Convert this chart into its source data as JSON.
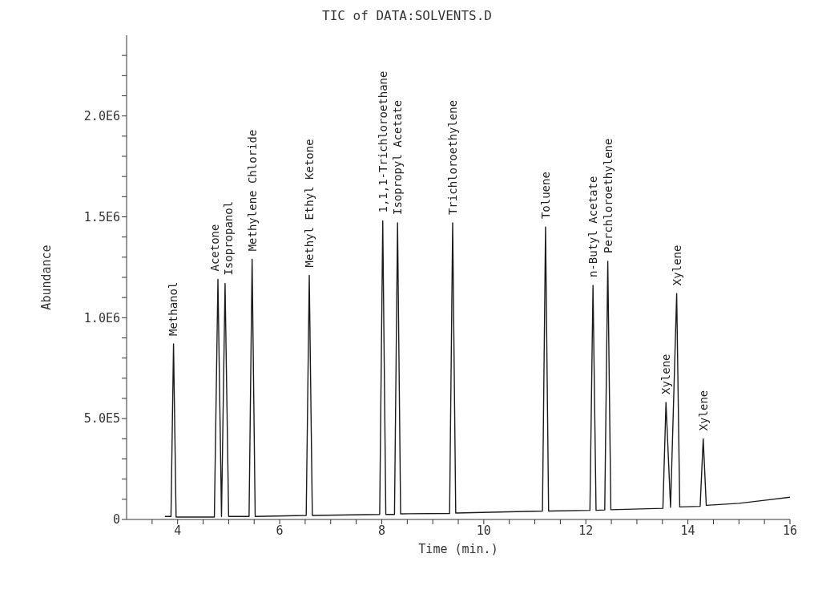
{
  "chart_data": {
    "type": "line",
    "title": "TIC of DATA:SOLVENTS.D",
    "xlabel": "Time (min.)",
    "ylabel": "Abundance",
    "series": [
      {
        "color": "#1a1a1a",
        "x": [
          3.75,
          3.87,
          3.92,
          3.97,
          4.72,
          4.79,
          4.86,
          4.93,
          5.0,
          5.4,
          5.46,
          5.52,
          6.52,
          6.58,
          6.64,
          7.96,
          8.02,
          8.08,
          8.25,
          8.31,
          8.37,
          9.33,
          9.39,
          9.45,
          11.15,
          11.21,
          11.27,
          12.08,
          12.14,
          12.2,
          12.37,
          12.43,
          12.49,
          13.51,
          13.57,
          13.66,
          13.78,
          13.84,
          14.24,
          14.3,
          14.36,
          15.0,
          15.5,
          16.0
        ],
        "values": [
          15000,
          15000,
          870000,
          12000,
          12000,
          1190000,
          15000,
          1170000,
          15000,
          15000,
          1290000,
          15000,
          20000,
          1210000,
          20000,
          25000,
          1480000,
          25000,
          25000,
          1470000,
          28000,
          30000,
          1470000,
          32000,
          42000,
          1450000,
          42000,
          45000,
          1160000,
          45000,
          47000,
          1280000,
          48000,
          55000,
          580000,
          60000,
          1120000,
          62000,
          65000,
          400000,
          70000,
          80000,
          95000,
          110000
        ]
      }
    ],
    "xlim": [
      3,
      16
    ],
    "xticks": [
      {
        "value": 3.5,
        "label": null
      },
      4,
      {
        "value": 4.5,
        "label": null
      },
      {
        "value": 5,
        "label": null
      },
      {
        "value": 5.5,
        "label": null
      },
      6,
      {
        "value": 6.5,
        "label": null
      },
      {
        "value": 7,
        "label": null
      },
      {
        "value": 7.5,
        "label": null
      },
      8,
      {
        "value": 8.5,
        "label": null
      },
      {
        "value": 9,
        "label": null
      },
      {
        "value": 9.5,
        "label": null
      },
      10,
      {
        "value": 10.5,
        "label": null
      },
      {
        "value": 11,
        "label": null
      },
      {
        "value": 11.5,
        "label": null
      },
      12,
      {
        "value": 12.5,
        "label": null
      },
      {
        "value": 13,
        "label": null
      },
      {
        "value": 13.5,
        "label": null
      },
      14,
      {
        "value": 14.5,
        "label": null
      },
      {
        "value": 15,
        "label": null
      },
      {
        "value": 15.5,
        "label": null
      },
      16
    ],
    "ylim": [
      0,
      2400000
    ],
    "yticks": [
      0,
      {
        "value": 100000,
        "label": null
      },
      {
        "value": 200000,
        "label": null
      },
      {
        "value": 300000,
        "label": null
      },
      {
        "value": 400000,
        "label": null
      },
      {
        "value": 500000,
        "label": "5.0E5"
      },
      {
        "value": 600000,
        "label": null
      },
      {
        "value": 700000,
        "label": null
      },
      {
        "value": 800000,
        "label": null
      },
      {
        "value": 900000,
        "label": null
      },
      {
        "value": 1000000,
        "label": "1.0E6"
      },
      {
        "value": 1100000,
        "label": null
      },
      {
        "value": 1200000,
        "label": null
      },
      {
        "value": 1300000,
        "label": null
      },
      {
        "value": 1400000,
        "label": null
      },
      {
        "value": 1500000,
        "label": "1.5E6"
      },
      {
        "value": 1600000,
        "label": null
      },
      {
        "value": 1700000,
        "label": null
      },
      {
        "value": 1800000,
        "label": null
      },
      {
        "value": 1900000,
        "label": null
      },
      {
        "value": 2000000,
        "label": "2.0E6"
      },
      {
        "value": 2100000,
        "label": null
      },
      {
        "value": 2200000,
        "label": null
      },
      {
        "value": 2300000,
        "label": null
      }
    ],
    "annotations": [
      {
        "text": "Methanol",
        "x": 3.92,
        "y": 870000
      },
      {
        "text": "Acetone",
        "x": 4.79,
        "y": 1190000
      },
      {
        "text": "Isopropanol",
        "x": 4.93,
        "y": 1170000
      },
      {
        "text": "Methylene Chloride",
        "x": 5.46,
        "y": 1290000
      },
      {
        "text": "Methyl Ethyl Ketone",
        "x": 6.58,
        "y": 1210000
      },
      {
        "text": "1,1,1-Trichloroethane",
        "x": 8.02,
        "y": 1480000
      },
      {
        "text": "Isopropyl Acetate",
        "x": 8.31,
        "y": 1470000
      },
      {
        "text": "Trichloroethylene",
        "x": 9.39,
        "y": 1470000
      },
      {
        "text": "Toluene",
        "x": 11.21,
        "y": 1450000
      },
      {
        "text": "n-Butyl Acetate",
        "x": 12.14,
        "y": 1160000
      },
      {
        "text": "Perchloroethylene",
        "x": 12.43,
        "y": 1280000
      },
      {
        "text": "Xylene",
        "x": 13.57,
        "y": 580000
      },
      {
        "text": "Xylene",
        "x": 13.78,
        "y": 1120000
      },
      {
        "text": "Xylene",
        "x": 14.3,
        "y": 400000
      }
    ]
  }
}
